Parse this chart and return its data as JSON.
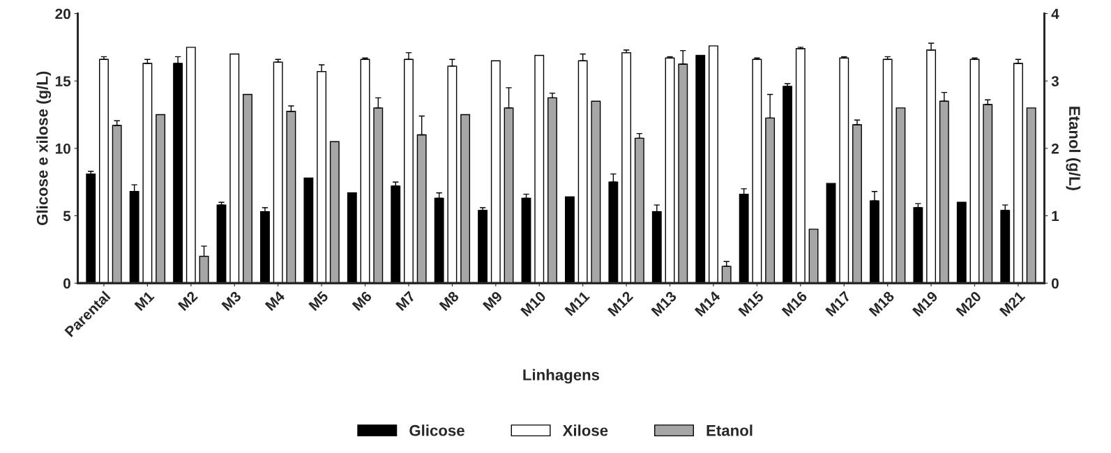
{
  "chart_data": {
    "type": "bar",
    "xlabel": "Linhagens",
    "ylabel": "Glicose e xilose (g/L)",
    "y2label": "Etanol (g/L)",
    "categories": [
      "Parental",
      "M1",
      "M2",
      "M3",
      "M4",
      "M5",
      "M6",
      "M7",
      "M8",
      "M9",
      "M10",
      "M11",
      "M12",
      "M13",
      "M14",
      "M15",
      "M16",
      "M17",
      "M18",
      "M19",
      "M20",
      "M21"
    ],
    "series": [
      {
        "name": "Glicose",
        "color": "#000000",
        "values": [
          8.1,
          6.8,
          16.3,
          5.8,
          5.3,
          7.8,
          6.7,
          7.2,
          6.3,
          5.4,
          6.3,
          6.4,
          7.5,
          5.3,
          16.9,
          6.6,
          14.6,
          7.4,
          6.1,
          5.6,
          6.0,
          5.4
        ],
        "errors": [
          0.2,
          0.5,
          0.5,
          0.2,
          0.3,
          null,
          null,
          0.3,
          0.4,
          0.2,
          0.3,
          null,
          0.6,
          0.5,
          null,
          0.4,
          0.2,
          null,
          0.7,
          0.3,
          null,
          0.4
        ]
      },
      {
        "name": "Xilose",
        "color": "#ffffff",
        "values": [
          16.6,
          16.3,
          17.5,
          17.0,
          16.4,
          15.7,
          16.6,
          16.6,
          16.1,
          16.5,
          16.9,
          16.5,
          17.1,
          16.7,
          17.6,
          16.6,
          17.4,
          16.7,
          16.6,
          17.3,
          16.6,
          16.3
        ],
        "errors": [
          0.2,
          0.3,
          null,
          null,
          0.2,
          0.5,
          0.1,
          0.5,
          0.5,
          null,
          null,
          0.5,
          0.2,
          0.1,
          null,
          0.1,
          0.1,
          0.1,
          0.2,
          0.5,
          0.1,
          0.3
        ]
      },
      {
        "name": "Etanol",
        "color": "#a6a6a6",
        "axis": "y2",
        "values": [
          2.34,
          2.5,
          0.4,
          2.8,
          2.55,
          2.1,
          2.6,
          2.2,
          2.5,
          2.6,
          2.75,
          2.7,
          2.15,
          3.25,
          0.25,
          2.45,
          0.8,
          2.35,
          2.6,
          2.7,
          2.65,
          2.6
        ],
        "errors": [
          0.07,
          null,
          0.15,
          null,
          0.08,
          null,
          0.15,
          0.28,
          null,
          0.3,
          0.07,
          null,
          0.07,
          0.2,
          0.07,
          0.35,
          null,
          0.07,
          null,
          0.13,
          0.07,
          null
        ]
      }
    ],
    "ylim": [
      0,
      20
    ],
    "yticks": [
      0,
      5,
      10,
      15,
      20
    ],
    "y2lim": [
      0,
      4
    ],
    "y2ticks": [
      0,
      1,
      2,
      3,
      4
    ],
    "legend": "bottom",
    "grid": false
  }
}
